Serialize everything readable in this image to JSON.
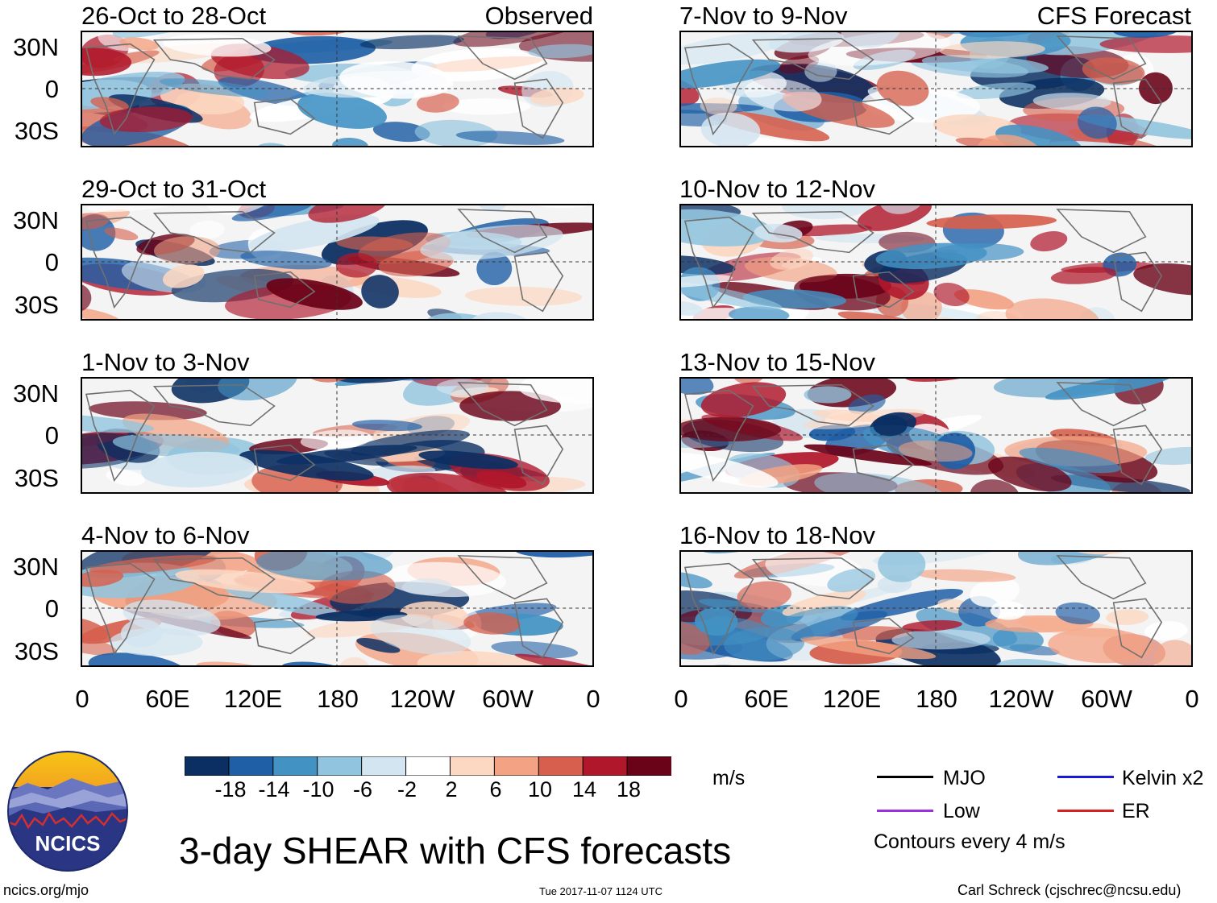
{
  "panels": [
    {
      "title": "26-Oct to 28-Oct",
      "tag": "Observed"
    },
    {
      "title": "29-Oct to 31-Oct",
      "tag": ""
    },
    {
      "title": "1-Nov to 3-Nov",
      "tag": ""
    },
    {
      "title": "4-Nov to 6-Nov",
      "tag": ""
    },
    {
      "title": "7-Nov to 9-Nov",
      "tag": "CFS Forecast"
    },
    {
      "title": "10-Nov to 12-Nov",
      "tag": ""
    },
    {
      "title": "13-Nov to 15-Nov",
      "tag": ""
    },
    {
      "title": "16-Nov to 18-Nov",
      "tag": ""
    }
  ],
  "lat_labels": [
    "30N",
    "0",
    "30S"
  ],
  "lon_labels": [
    "0",
    "60E",
    "120E",
    "180",
    "120W",
    "60W",
    "0"
  ],
  "colorbar": {
    "labels": [
      "-18",
      "-14",
      "-10",
      "-6",
      "-2",
      "2",
      "6",
      "10",
      "14",
      "18"
    ],
    "unit": "m/s",
    "colors": [
      "#0b2f63",
      "#1f5fa6",
      "#4392c4",
      "#91c4de",
      "#d3e5f0",
      "#ffffff",
      "#fcd7c1",
      "#f3a283",
      "#d6604d",
      "#b0172b",
      "#6a0218"
    ]
  },
  "legend": {
    "mjo": "MJO",
    "low": "Low",
    "kelvin": "Kelvin x2",
    "er": "ER",
    "contours": "Contours every 4 m/s",
    "colors": {
      "mjo": "#000000",
      "low": "#9b30e0",
      "kelvin": "#1a1ad6",
      "er": "#d62020"
    }
  },
  "logo": {
    "text": "NCICS"
  },
  "title": "3-day SHEAR with CFS forecasts",
  "footer": {
    "left": "ncics.org/mjo",
    "center": "Tue 2017-11-07 1124 UTC",
    "right": "Carl Schreck (cjschrec@ncsu.edu)"
  }
}
